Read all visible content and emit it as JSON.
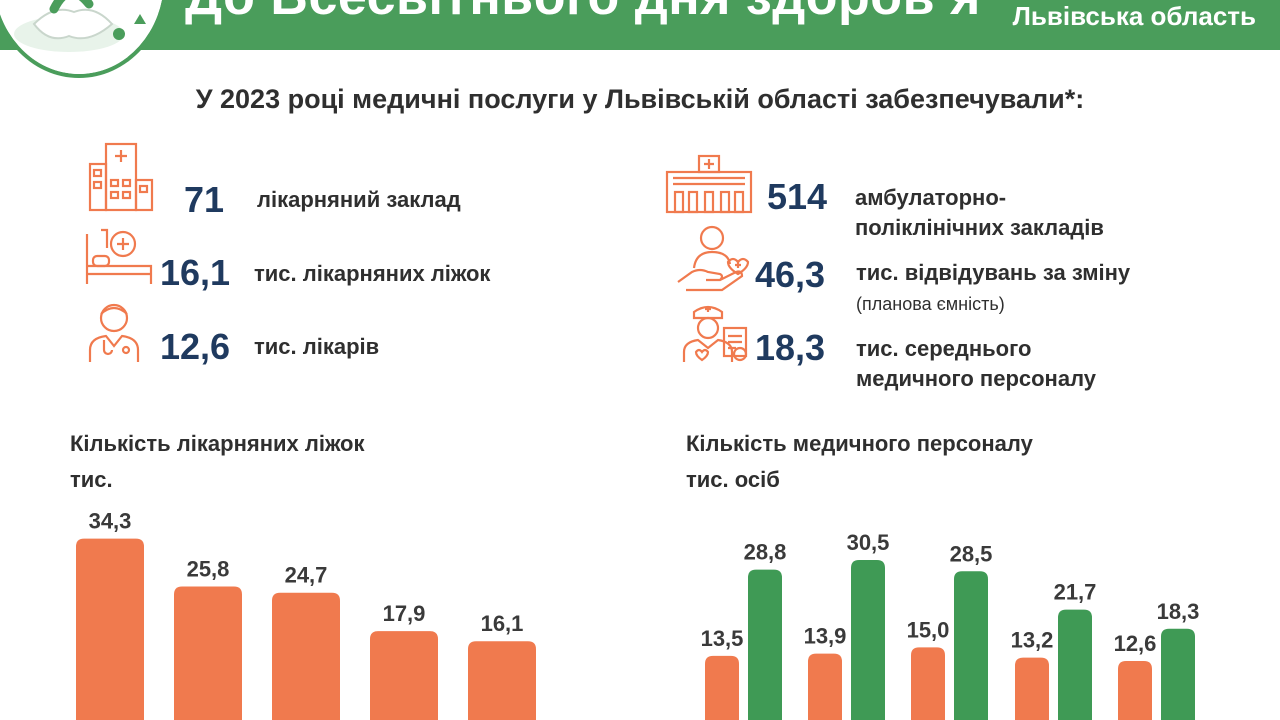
{
  "header": {
    "title": "До Всесвітнього дня здоров’я",
    "region": "Львівська область"
  },
  "headline": "У 2023 році медичні послуги у Львівській області забезпечували*:",
  "stats_left": [
    {
      "icon": "hospital-building-icon",
      "value": "71",
      "label": "лікарняний заклад"
    },
    {
      "icon": "hospital-bed-icon",
      "value": "16,1",
      "label": "тис. лікарняних ліжок"
    },
    {
      "icon": "doctor-icon",
      "value": "12,6",
      "label": "тис. лікарів"
    }
  ],
  "stats_right": [
    {
      "icon": "clinic-building-icon",
      "value": "514",
      "label_line1": "амбулаторно-",
      "label_line2": "поліклінічних закладів"
    },
    {
      "icon": "patient-care-hand-icon",
      "value": "46,3",
      "label_line1": "тис. відвідувань за зміну",
      "note": "(планова ємність)"
    },
    {
      "icon": "nurse-icon",
      "value": "18,3",
      "label_line1": "тис. середнього",
      "label_line2": "медичного персоналу"
    }
  ],
  "colors": {
    "banner_green": "#4a9d5b",
    "icon_orange": "#f07a4e",
    "bar_orange": "#f07a4e",
    "bar_green": "#3f9a55",
    "value_navy": "#1f3a5f"
  },
  "chart_data": [
    {
      "type": "bar",
      "title": "Кількість лікарняних ліжок",
      "ylabel": "тис.",
      "values": [
        34.3,
        25.8,
        24.7,
        17.9,
        16.1
      ],
      "value_labels": [
        "34,3",
        "25,8",
        "24,7",
        "17,9",
        "16,1"
      ],
      "color": "#f07a4e",
      "ylim": [
        0,
        36
      ]
    },
    {
      "type": "bar",
      "title": "Кількість медичного персоналу",
      "ylabel": "тис. осіб",
      "series": [
        {
          "values": [
            13.5,
            13.9,
            15.0,
            13.2,
            12.6
          ],
          "value_labels": [
            "13,5",
            "13,9",
            "15,0",
            "13,2",
            "12,6"
          ],
          "color": "#f07a4e"
        },
        {
          "values": [
            28.8,
            30.5,
            28.5,
            21.7,
            18.3
          ],
          "value_labels": [
            "28,8",
            "30,5",
            "28,5",
            "21,7",
            "18,3"
          ],
          "color": "#3f9a55"
        }
      ],
      "ylim": [
        0,
        36
      ]
    }
  ]
}
